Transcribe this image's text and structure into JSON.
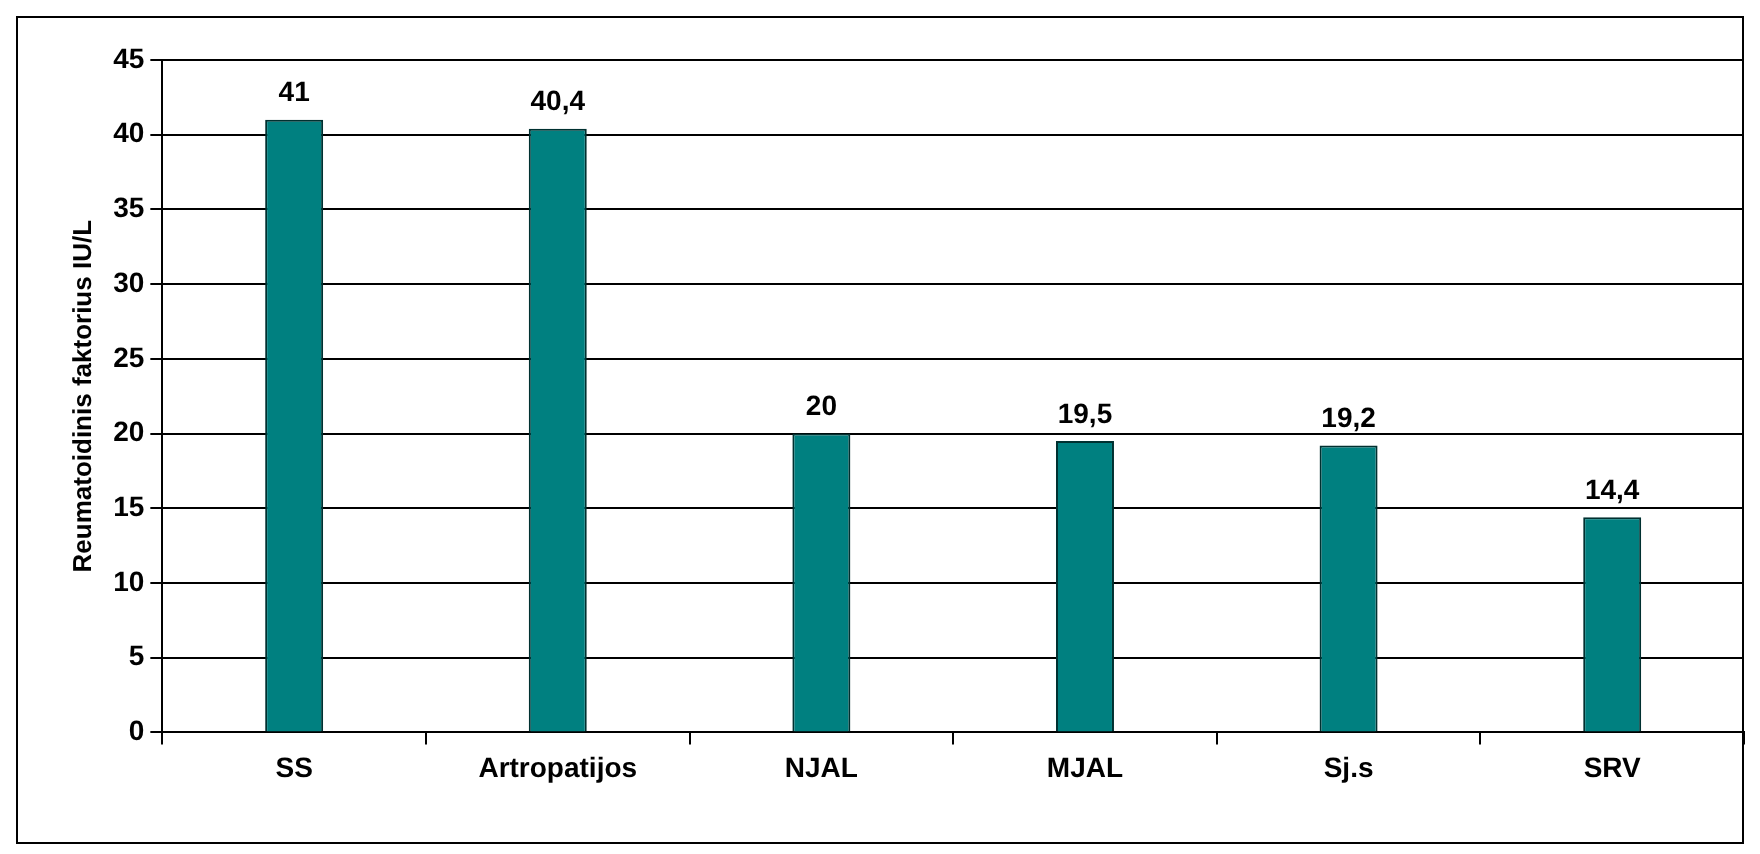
{
  "chart_data": {
    "type": "bar",
    "ylabel": "Reumatoidinis faktorius IU/L",
    "categories": [
      "SS",
      "Artropatijos",
      "NJAL",
      "MJAL",
      "Sj.s",
      "SRV"
    ],
    "values": [
      41,
      40.4,
      20,
      19.5,
      19.2,
      14.4
    ],
    "value_labels": [
      "41",
      "40,4",
      "20",
      "19,5",
      "19,2",
      "14,4"
    ],
    "color": "#008080",
    "ylim": [
      0,
      45
    ],
    "yticks": [
      0,
      5,
      10,
      15,
      20,
      25,
      30,
      35,
      40,
      45
    ],
    "grid": "y",
    "legend": false
  }
}
